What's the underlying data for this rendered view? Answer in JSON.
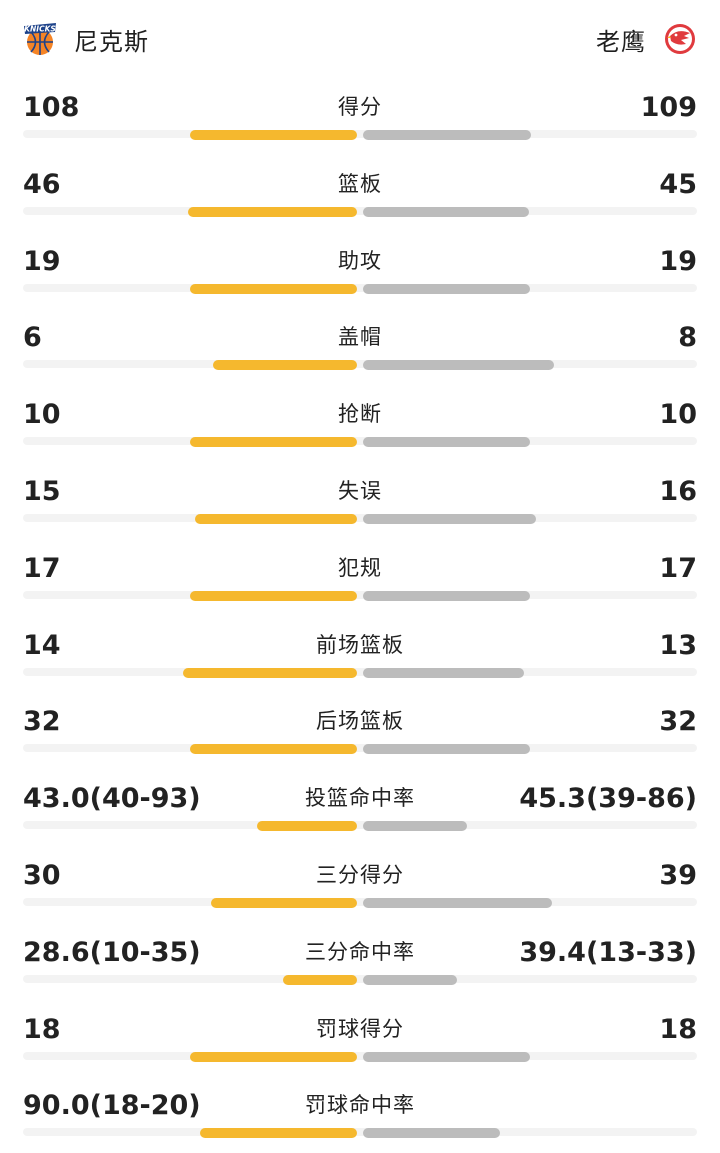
{
  "header": {
    "home": {
      "name": "尼克斯",
      "logo_icon": "knicks-logo-icon"
    },
    "away": {
      "name": "老鹰",
      "logo_icon": "hawks-logo-icon"
    }
  },
  "colors": {
    "home_bar": "#f5b82e",
    "away_bar": "#bcbcbc",
    "track": "#f3f3f3"
  },
  "stats": [
    {
      "label": "得分",
      "home": "108",
      "away": "109",
      "home_share": 0.498,
      "away_share": 0.502
    },
    {
      "label": "篮板",
      "home": "46",
      "away": "45",
      "home_share": 0.505,
      "away_share": 0.495
    },
    {
      "label": "助攻",
      "home": "19",
      "away": "19",
      "home_share": 0.5,
      "away_share": 0.5
    },
    {
      "label": "盖帽",
      "home": "6",
      "away": "8",
      "home_share": 0.429,
      "away_share": 0.571
    },
    {
      "label": "抢断",
      "home": "10",
      "away": "10",
      "home_share": 0.5,
      "away_share": 0.5
    },
    {
      "label": "失误",
      "home": "15",
      "away": "16",
      "home_share": 0.484,
      "away_share": 0.516
    },
    {
      "label": "犯规",
      "home": "17",
      "away": "17",
      "home_share": 0.5,
      "away_share": 0.5
    },
    {
      "label": "前场篮板",
      "home": "14",
      "away": "13",
      "home_share": 0.519,
      "away_share": 0.481
    },
    {
      "label": "后场篮板",
      "home": "32",
      "away": "32",
      "home_share": 0.5,
      "away_share": 0.5
    },
    {
      "label": "投篮命中率",
      "home": "43.0(40-93)",
      "away": "45.3(39-86)",
      "home_share": 0.3,
      "away_share": 0.31
    },
    {
      "label": "三分得分",
      "home": "30",
      "away": "39",
      "home_share": 0.435,
      "away_share": 0.565
    },
    {
      "label": "三分命中率",
      "home": "28.6(10-35)",
      "away": "39.4(13-33)",
      "home_share": 0.22,
      "away_share": 0.28
    },
    {
      "label": "罚球得分",
      "home": "18",
      "away": "18",
      "home_share": 0.5,
      "away_share": 0.5
    },
    {
      "label": "罚球命中率",
      "home": "90.0(18-20)",
      "away": "",
      "home_share": 0.47,
      "away_share": 0.41
    }
  ]
}
